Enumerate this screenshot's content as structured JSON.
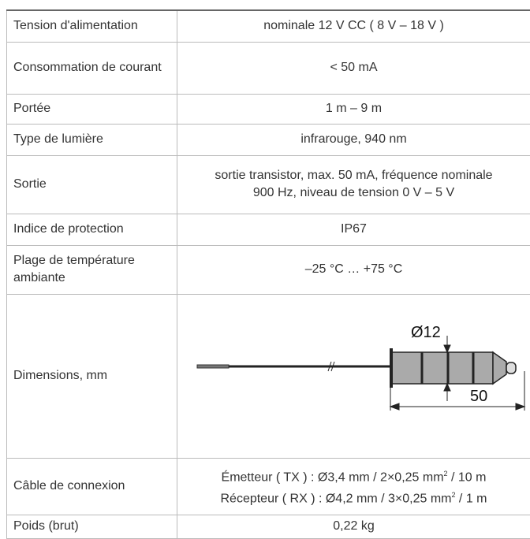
{
  "table": {
    "rows": [
      [
        "Tension d'alimentation",
        "nominale 12 V CC ( 8 V – 18 V )"
      ],
      [
        "Consommation de courant",
        "< 50 mA"
      ],
      [
        "Portée",
        "1 m – 9 m"
      ],
      [
        "Type de lumière",
        "infrarouge, 940 nm"
      ],
      [
        "Sortie",
        "sortie transistor, max. 50 mA, fréquence nominale",
        "900 Hz, niveau de tension 0 V – 5 V"
      ],
      [
        "Indice de protection",
        "IP67"
      ],
      [
        "Plage de température ambiante",
        "–25 °C … +75 °C"
      ],
      [
        "Dimensions, mm"
      ],
      [
        "Câble de connexion"
      ],
      [
        "Poids (brut)",
        "0,22 kg"
      ]
    ],
    "drawing": {
      "diameter": "Ø12",
      "length": "50"
    },
    "cable": {
      "line1": [
        "Émetteur ( TX ) : Ø3,4 mm / 2×0,25 mm",
        "2",
        " / 10 m"
      ],
      "line2": [
        "Récepteur ( RX ) : Ø4,2 mm / 3×0,25 mm",
        "2",
        " / 1 m"
      ]
    }
  }
}
